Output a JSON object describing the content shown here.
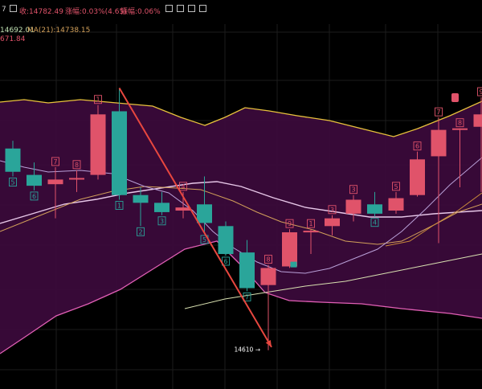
{
  "header": {
    "partial_code": "7",
    "open_text": "收:14782.49",
    "change_text": "涨幅:0.03%(4.65)",
    "amplitude_text": "振幅:0.06%",
    "toolbar_icons": [
      "toolbar-icon-1",
      "toolbar-icon-2",
      "toolbar-icon-3",
      "toolbar-icon-4",
      "toolbar-icon-5",
      "toolbar-icon-6"
    ]
  },
  "indicators": {
    "ma_value_left": "14692.01",
    "ma21_text": "MA(21):14738.15",
    "lower_value": "671.84"
  },
  "colors": {
    "background": "#000000",
    "band_fill": "#3a0a3a",
    "up": "#e0536a",
    "down": "#2aa59a",
    "upper_band": "#e8c23c",
    "mid_band": "#e7c7e8",
    "ma_slow": "#d2a05a",
    "long_ma": "#d8e0b0",
    "trend_arrow": "#e8473f",
    "low_label": "#ffffff"
  },
  "chart": {
    "low_marker": "14610"
  },
  "chart_data": {
    "type": "candlestick",
    "title": "",
    "xlabel": "",
    "ylabel": "",
    "ylim": [
      14585,
      14815
    ],
    "series": [
      {
        "name": "",
        "type": "candlestick",
        "values": [
          {
            "seq": "5",
            "open": 14740,
            "high": 14745,
            "low": 14722,
            "close": 14725
          },
          {
            "seq": "6",
            "open": 14723,
            "high": 14731,
            "low": 14713,
            "close": 14716
          },
          {
            "seq": "7",
            "open": 14717,
            "high": 14728,
            "low": 14695,
            "close": 14720
          },
          {
            "seq": "8",
            "open": 14721,
            "high": 14726,
            "low": 14712,
            "close": 14721
          },
          {
            "seq": "1",
            "open": 14723,
            "high": 14768,
            "low": 14720,
            "close": 14762
          },
          {
            "seq": "1",
            "open": 14764,
            "high": 14779,
            "low": 14707,
            "close": 14710
          },
          {
            "seq": "2",
            "open": 14710,
            "high": 14715,
            "low": 14690,
            "close": 14705
          },
          {
            "seq": "3",
            "open": 14705,
            "high": 14712,
            "low": 14697,
            "close": 14699
          },
          {
            "seq": "4",
            "open": 14700,
            "high": 14712,
            "low": 14695,
            "close": 14702
          },
          {
            "seq": "5",
            "open": 14704,
            "high": 14722,
            "low": 14685,
            "close": 14692
          },
          {
            "seq": "6",
            "open": 14690,
            "high": 14693,
            "low": 14671,
            "close": 14672
          },
          {
            "seq": "7",
            "open": 14673,
            "high": 14681,
            "low": 14648,
            "close": 14650
          },
          {
            "seq": "8",
            "open": 14652,
            "high": 14665,
            "low": 14610,
            "close": 14663
          },
          {
            "seq": "9",
            "open": 14664,
            "high": 14688,
            "low": 14663,
            "close": 14686
          },
          {
            "seq": "1",
            "open": 14686,
            "high": 14688,
            "low": 14672,
            "close": 14687
          },
          {
            "seq": "3",
            "open": 14690,
            "high": 14697,
            "low": 14684,
            "close": 14695
          },
          {
            "seq": "3",
            "open": 14698,
            "high": 14710,
            "low": 14693,
            "close": 14707
          },
          {
            "seq": "4",
            "open": 14704,
            "high": 14712,
            "low": 14696,
            "close": 14698
          },
          {
            "seq": "5",
            "open": 14700,
            "high": 14712,
            "low": 14698,
            "close": 14708
          },
          {
            "seq": "6",
            "open": 14710,
            "high": 14738,
            "low": 14709,
            "close": 14733
          },
          {
            "seq": "7",
            "open": 14735,
            "high": 14760,
            "low": 14679,
            "close": 14752
          },
          {
            "seq": "8",
            "open": 14753,
            "high": 14753,
            "low": 14715,
            "close": 14753
          },
          {
            "seq": "9",
            "open": 14754,
            "high": 14773,
            "low": 14712,
            "close": 14762
          }
        ]
      }
    ],
    "grid": true,
    "legend": "none"
  }
}
